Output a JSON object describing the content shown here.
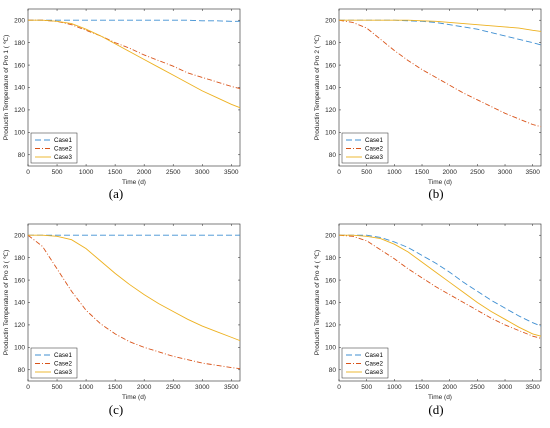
{
  "colors": {
    "case1": "#3f8fd2",
    "case2": "#d95319",
    "case3": "#edb120"
  },
  "chart_data": [
    {
      "type": "line",
      "panel_label": "(a)",
      "xlabel": "Time (d)",
      "ylabel": "Productin Temperature of Pro 1 ( ℃)",
      "xlim": [
        0,
        3650
      ],
      "ylim": [
        70,
        210
      ],
      "xticks": [
        0,
        500,
        1000,
        1500,
        2000,
        2500,
        3000,
        3500
      ],
      "yticks": [
        80,
        100,
        120,
        140,
        160,
        180,
        200
      ],
      "legend": "bottom-left",
      "grid": false,
      "x": [
        0,
        250,
        500,
        750,
        1000,
        1250,
        1500,
        1750,
        2000,
        2250,
        2500,
        2750,
        3000,
        3250,
        3500,
        3650
      ],
      "series": [
        {
          "name": "Case1",
          "values": [
            200,
            200,
            200,
            200,
            200,
            200,
            200,
            200,
            200,
            200,
            200,
            200,
            199.5,
            199.5,
            199,
            199
          ]
        },
        {
          "name": "Case2",
          "values": [
            200,
            200,
            199,
            196,
            191,
            186,
            180,
            175,
            169,
            164,
            159,
            153,
            149,
            145,
            141,
            139
          ]
        },
        {
          "name": "Case3",
          "values": [
            200,
            200,
            199,
            197,
            192,
            186,
            179,
            172,
            165,
            158,
            151,
            144,
            137,
            131,
            125,
            122
          ]
        }
      ]
    },
    {
      "type": "line",
      "panel_label": "(b)",
      "xlabel": "Time (d)",
      "ylabel": "Productin Temperature of Pro 2 ( ℃)",
      "xlim": [
        0,
        3650
      ],
      "ylim": [
        70,
        210
      ],
      "xticks": [
        0,
        500,
        1000,
        1500,
        2000,
        2500,
        3000,
        3500
      ],
      "yticks": [
        80,
        100,
        120,
        140,
        160,
        180,
        200
      ],
      "legend": "bottom-left",
      "grid": false,
      "x": [
        0,
        250,
        500,
        750,
        1000,
        1250,
        1500,
        1750,
        2000,
        2250,
        2500,
        2750,
        3000,
        3250,
        3500,
        3650
      ],
      "series": [
        {
          "name": "Case1",
          "values": [
            200,
            200,
            200,
            200,
            200,
            199.5,
            199,
            198,
            196,
            194,
            192,
            189,
            186,
            183,
            180,
            178
          ]
        },
        {
          "name": "Case2",
          "values": [
            200,
            198,
            193,
            183,
            173,
            164,
            156,
            149,
            142,
            135,
            129,
            123,
            117,
            112,
            107,
            105
          ]
        },
        {
          "name": "Case3",
          "values": [
            200,
            200,
            200,
            200,
            200,
            200,
            199.5,
            199,
            198,
            197,
            196,
            195,
            194,
            193,
            191,
            190
          ]
        }
      ]
    },
    {
      "type": "line",
      "panel_label": "(c)",
      "xlabel": "Time (d)",
      "ylabel": "Productin Temperature of Pro 3 ( ℃)",
      "xlim": [
        0,
        3650
      ],
      "ylim": [
        70,
        210
      ],
      "xticks": [
        0,
        500,
        1000,
        1500,
        2000,
        2500,
        3000,
        3500
      ],
      "yticks": [
        80,
        100,
        120,
        140,
        160,
        180,
        200
      ],
      "legend": "bottom-left",
      "grid": false,
      "x": [
        0,
        250,
        500,
        750,
        1000,
        1250,
        1500,
        1750,
        2000,
        2250,
        2500,
        2750,
        3000,
        3250,
        3500,
        3650
      ],
      "series": [
        {
          "name": "Case1",
          "values": [
            200,
            200,
            200,
            200,
            200,
            200,
            200,
            200,
            200,
            200,
            200,
            200,
            200,
            200,
            200,
            200
          ]
        },
        {
          "name": "Case2",
          "values": [
            200,
            190,
            170,
            150,
            133,
            121,
            112,
            105,
            100,
            96,
            92,
            89,
            86,
            84,
            82,
            81
          ]
        },
        {
          "name": "Case3",
          "values": [
            200,
            200,
            199,
            196,
            188,
            177,
            166,
            156,
            147,
            139,
            132,
            125,
            119,
            114,
            109,
            106
          ]
        }
      ]
    },
    {
      "type": "line",
      "panel_label": "(d)",
      "xlabel": "Time (d)",
      "ylabel": "Productin Temperature of Pro 4 ( ℃)",
      "xlim": [
        0,
        3650
      ],
      "ylim": [
        70,
        210
      ],
      "xticks": [
        0,
        500,
        1000,
        1500,
        2000,
        2500,
        3000,
        3500
      ],
      "yticks": [
        80,
        100,
        120,
        140,
        160,
        180,
        200
      ],
      "legend": "bottom-left",
      "grid": false,
      "x": [
        0,
        250,
        500,
        750,
        1000,
        1250,
        1500,
        1750,
        2000,
        2250,
        2500,
        2750,
        3000,
        3250,
        3500,
        3650
      ],
      "series": [
        {
          "name": "Case1",
          "values": [
            200,
            200,
            200,
            198,
            194,
            189,
            182,
            175,
            167,
            158,
            150,
            142,
            135,
            128,
            122,
            119
          ]
        },
        {
          "name": "Case2",
          "values": [
            200,
            199,
            195,
            187,
            179,
            170,
            162,
            154,
            147,
            140,
            133,
            126,
            120,
            115,
            110,
            108
          ]
        },
        {
          "name": "Case3",
          "values": [
            200,
            200,
            199,
            197,
            192,
            185,
            176,
            167,
            158,
            149,
            140,
            132,
            125,
            118,
            112,
            110
          ]
        }
      ]
    }
  ]
}
